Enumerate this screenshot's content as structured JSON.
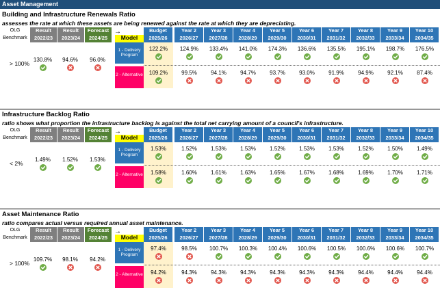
{
  "header": {
    "title": "Asset Management"
  },
  "columns": {
    "olg": "OLG",
    "benchmark": "Benchmark",
    "hist": [
      {
        "label": "Result",
        "year": "2022/23",
        "kind": "grey"
      },
      {
        "label": "Result",
        "year": "2023/24",
        "kind": "grey"
      },
      {
        "label": "Forecast",
        "year": "2024/25",
        "kind": "green"
      }
    ],
    "arrow": "→",
    "model": "Model",
    "future": [
      {
        "label": "Budget",
        "year": "2025/26"
      },
      {
        "label": "Year 2",
        "year": "2026/27"
      },
      {
        "label": "Year 3",
        "year": "2027/28"
      },
      {
        "label": "Year 4",
        "year": "2028/29"
      },
      {
        "label": "Year 5",
        "year": "2029/30"
      },
      {
        "label": "Year 6",
        "year": "2030/31"
      },
      {
        "label": "Year 7",
        "year": "2031/32"
      },
      {
        "label": "Year 8",
        "year": "2032/33"
      },
      {
        "label": "Year 9",
        "year": "2033/34"
      },
      {
        "label": "Year 10",
        "year": "2034/35"
      }
    ],
    "program1": "1 - Delivery Program",
    "program2": "2 - Alternative"
  },
  "sections": [
    {
      "title": "Building and Infrastructure Renewals Ratio",
      "subtitle": "assesses the rate at which these assets are being renewed against the rate at which they are depreciating.",
      "benchmark": "> 100%",
      "hist": [
        {
          "value": "130.8%",
          "status": "pass"
        },
        {
          "value": "94.6%",
          "status": "fail"
        },
        {
          "value": "96.0%",
          "status": "fail"
        }
      ],
      "row1": [
        {
          "value": "122.2%",
          "status": "pass"
        },
        {
          "value": "124.9%",
          "status": "pass"
        },
        {
          "value": "133.4%",
          "status": "pass"
        },
        {
          "value": "141.0%",
          "status": "pass"
        },
        {
          "value": "174.3%",
          "status": "pass"
        },
        {
          "value": "136.6%",
          "status": "pass"
        },
        {
          "value": "135.5%",
          "status": "pass"
        },
        {
          "value": "195.1%",
          "status": "pass"
        },
        {
          "value": "198.7%",
          "status": "pass"
        },
        {
          "value": "176.5%",
          "status": "pass"
        }
      ],
      "row2": [
        {
          "value": "109.2%",
          "status": "pass"
        },
        {
          "value": "99.5%",
          "status": "fail"
        },
        {
          "value": "94.1%",
          "status": "fail"
        },
        {
          "value": "94.7%",
          "status": "fail"
        },
        {
          "value": "93.7%",
          "status": "fail"
        },
        {
          "value": "93.0%",
          "status": "fail"
        },
        {
          "value": "91.9%",
          "status": "fail"
        },
        {
          "value": "94.9%",
          "status": "fail"
        },
        {
          "value": "92.1%",
          "status": "fail"
        },
        {
          "value": "87.4%",
          "status": "fail"
        }
      ]
    },
    {
      "title": "Infrastructure Backlog Ratio",
      "subtitle": "ratio shows what proportion the infrastructure backlog is against the total net carrying amount of a council's infrastructure.",
      "benchmark": "< 2%",
      "hist": [
        {
          "value": "1.49%",
          "status": "pass"
        },
        {
          "value": "1.52%",
          "status": "pass"
        },
        {
          "value": "1.53%",
          "status": "pass"
        }
      ],
      "row1": [
        {
          "value": "1.53%",
          "status": "pass"
        },
        {
          "value": "1.52%",
          "status": "pass"
        },
        {
          "value": "1.53%",
          "status": "pass"
        },
        {
          "value": "1.53%",
          "status": "pass"
        },
        {
          "value": "1.52%",
          "status": "pass"
        },
        {
          "value": "1.53%",
          "status": "pass"
        },
        {
          "value": "1.53%",
          "status": "pass"
        },
        {
          "value": "1.52%",
          "status": "pass"
        },
        {
          "value": "1.50%",
          "status": "pass"
        },
        {
          "value": "1.49%",
          "status": "pass"
        }
      ],
      "row2": [
        {
          "value": "1.58%",
          "status": "pass"
        },
        {
          "value": "1.60%",
          "status": "pass"
        },
        {
          "value": "1.61%",
          "status": "pass"
        },
        {
          "value": "1.63%",
          "status": "pass"
        },
        {
          "value": "1.65%",
          "status": "pass"
        },
        {
          "value": "1.67%",
          "status": "pass"
        },
        {
          "value": "1.68%",
          "status": "pass"
        },
        {
          "value": "1.69%",
          "status": "pass"
        },
        {
          "value": "1.70%",
          "status": "pass"
        },
        {
          "value": "1.71%",
          "status": "pass"
        }
      ]
    },
    {
      "title": "Asset Maintenance Ratio",
      "subtitle": "ratio compares actual versus required annual asset maintenance.",
      "benchmark": "> 100%",
      "hist": [
        {
          "value": "109.7%",
          "status": "pass"
        },
        {
          "value": "98.1%",
          "status": "fail"
        },
        {
          "value": "94.2%",
          "status": "fail"
        }
      ],
      "row1": [
        {
          "value": "97.4%",
          "status": "fail"
        },
        {
          "value": "98.5%",
          "status": "fail"
        },
        {
          "value": "100.7%",
          "status": "pass"
        },
        {
          "value": "100.3%",
          "status": "pass"
        },
        {
          "value": "100.4%",
          "status": "pass"
        },
        {
          "value": "100.6%",
          "status": "pass"
        },
        {
          "value": "100.5%",
          "status": "pass"
        },
        {
          "value": "100.6%",
          "status": "pass"
        },
        {
          "value": "100.6%",
          "status": "pass"
        },
        {
          "value": "100.7%",
          "status": "pass"
        }
      ],
      "row2": [
        {
          "value": "94.2%",
          "status": "fail"
        },
        {
          "value": "94.3%",
          "status": "fail"
        },
        {
          "value": "94.3%",
          "status": "fail"
        },
        {
          "value": "94.3%",
          "status": "fail"
        },
        {
          "value": "94.3%",
          "status": "fail"
        },
        {
          "value": "94.3%",
          "status": "fail"
        },
        {
          "value": "94.3%",
          "status": "fail"
        },
        {
          "value": "94.4%",
          "status": "fail"
        },
        {
          "value": "94.4%",
          "status": "fail"
        },
        {
          "value": "94.4%",
          "status": "fail"
        }
      ]
    }
  ],
  "colors": {
    "pass": "#70ad47",
    "fail": "#e2584f",
    "header": "#1f4e79",
    "blue": "#2e75b6",
    "pink": "#ff0066"
  }
}
